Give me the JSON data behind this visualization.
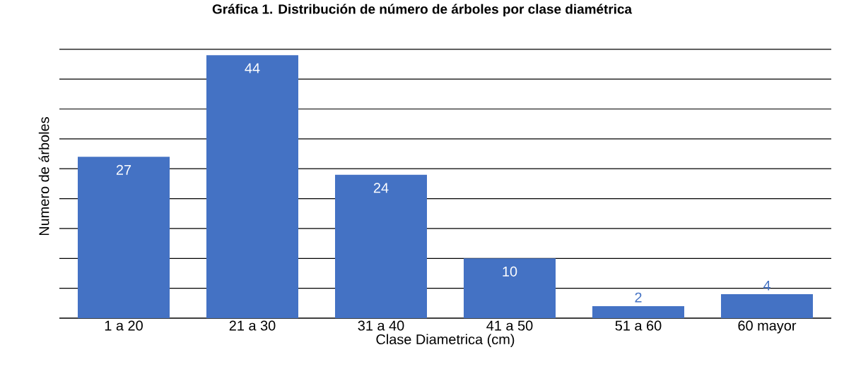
{
  "chart_data": {
    "type": "bar",
    "title": "Gráfica 1. Distribución de número de árboles por clase diamétrica",
    "xlabel": "Clase Diametrica (cm)",
    "ylabel": "Numero de árboles",
    "categories": [
      "1 a 20",
      "21 a 30",
      "31 a 40",
      "41 a 50",
      "51 a 60",
      "60 mayor"
    ],
    "values": [
      27,
      44,
      24,
      10,
      2,
      4
    ],
    "color": "#4472c4",
    "grid": "y",
    "data_labels": true,
    "tick_labels": "x"
  }
}
